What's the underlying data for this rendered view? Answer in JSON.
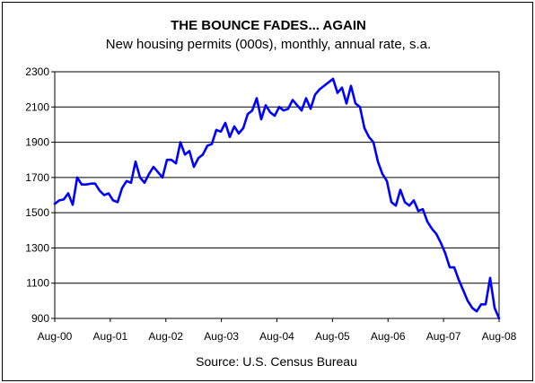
{
  "chart_data": {
    "type": "line",
    "title": "THE BOUNCE FADES... AGAIN",
    "subtitle": "New housing permits (000s), monthly, annual rate, s.a.",
    "source": "Source: U.S. Census Bureau",
    "xlabel": "",
    "ylabel": "",
    "ylim": [
      900,
      2300
    ],
    "yticks": [
      900,
      1100,
      1300,
      1500,
      1700,
      1900,
      2100,
      2300
    ],
    "xticks": [
      "Aug-00",
      "Aug-01",
      "Aug-02",
      "Aug-03",
      "Aug-04",
      "Aug-05",
      "Aug-06",
      "Aug-07",
      "Aug-08"
    ],
    "grid": "horizontal",
    "legend": "none",
    "series_color": "#0000ff",
    "x_start": "Aug-00",
    "x_end": "Aug-08",
    "values": [
      1550,
      1570,
      1575,
      1610,
      1545,
      1700,
      1660,
      1660,
      1665,
      1665,
      1625,
      1600,
      1610,
      1570,
      1560,
      1640,
      1680,
      1670,
      1790,
      1700,
      1670,
      1720,
      1760,
      1730,
      1700,
      1800,
      1800,
      1780,
      1900,
      1830,
      1850,
      1760,
      1810,
      1830,
      1880,
      1890,
      1970,
      1960,
      2010,
      1930,
      1990,
      1950,
      1980,
      2060,
      2080,
      2150,
      2030,
      2110,
      2070,
      2050,
      2100,
      2080,
      2090,
      2140,
      2110,
      2080,
      2150,
      2090,
      2170,
      2200,
      2220,
      2240,
      2260,
      2180,
      2210,
      2120,
      2220,
      2120,
      2100,
      1980,
      1930,
      1900,
      1790,
      1720,
      1680,
      1560,
      1540,
      1630,
      1560,
      1540,
      1570,
      1510,
      1520,
      1450,
      1410,
      1380,
      1330,
      1270,
      1190,
      1190,
      1120,
      1060,
      1000,
      960,
      940,
      980,
      980,
      1130,
      960,
      900
    ]
  }
}
